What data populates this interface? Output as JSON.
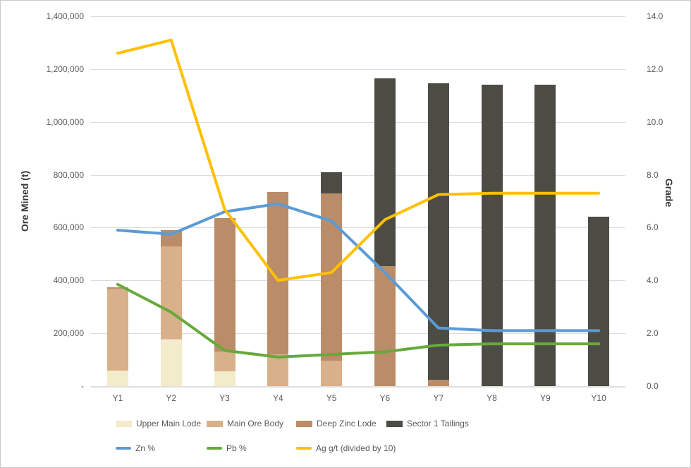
{
  "chart": {
    "left_axis_title": "Ore Mined (t)",
    "right_axis_title": "Grade"
  },
  "chart_data": {
    "type": "combo (stacked bar + line, dual axis)",
    "categories": [
      "Y1",
      "Y2",
      "Y3",
      "Y4",
      "Y5",
      "Y6",
      "Y7",
      "Y8",
      "Y9",
      "Y10"
    ],
    "ylabel_left": "Ore Mined (t)",
    "ylabel_right": "Grade",
    "left_axis": {
      "min": 0,
      "max": 1400000,
      "step": 200000,
      "zero_label": "-"
    },
    "right_axis": {
      "min": 0.0,
      "max": 14.0,
      "step": 2.0
    },
    "grid": "horizontal",
    "legend_position": "bottom",
    "bar_series": [
      {
        "name": "Upper Main Lode",
        "color": "#f3ecca",
        "values": [
          60000,
          175000,
          55000,
          0,
          0,
          0,
          0,
          0,
          0,
          0
        ]
      },
      {
        "name": "Main Ore Body",
        "color": "#d8b08a",
        "values": [
          310000,
          355000,
          75000,
          120000,
          95000,
          0,
          0,
          0,
          0,
          0
        ]
      },
      {
        "name": "Deep Zinc Lode",
        "color": "#bb8c68",
        "values": [
          5000,
          60000,
          505000,
          615000,
          635000,
          455000,
          25000,
          0,
          0,
          0
        ]
      },
      {
        "name": "Sector 1 Tailings",
        "color": "#4c4c44",
        "values": [
          0,
          0,
          0,
          0,
          80000,
          710000,
          1120000,
          1140000,
          1140000,
          640000
        ]
      }
    ],
    "bar_totals": [
      375000,
      590000,
      635000,
      735000,
      810000,
      1165000,
      1145000,
      1140000,
      1140000,
      640000
    ],
    "line_series": [
      {
        "name": "Zn %",
        "color": "#5b9bd5",
        "values": [
          5.9,
          5.75,
          6.6,
          6.9,
          6.25,
          4.3,
          2.2,
          2.1,
          2.1,
          2.1
        ]
      },
      {
        "name": "Pb %",
        "color": "#67a93c",
        "values": [
          3.85,
          2.8,
          1.35,
          1.1,
          1.2,
          1.3,
          1.55,
          1.6,
          1.6,
          1.6
        ]
      },
      {
        "name": "Ag g/t (divided by 10)",
        "color": "#ffc000",
        "values": [
          12.6,
          13.1,
          6.7,
          4.0,
          4.3,
          6.3,
          7.25,
          7.3,
          7.3,
          7.3
        ]
      }
    ]
  }
}
